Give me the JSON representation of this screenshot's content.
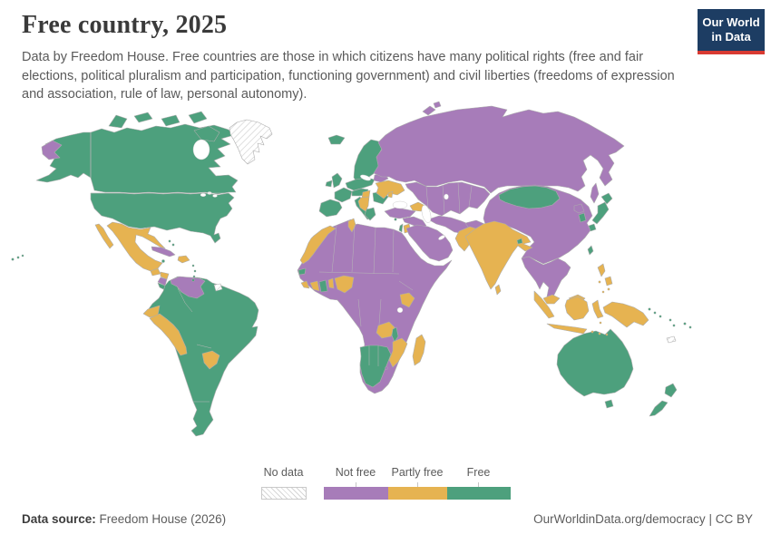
{
  "header": {
    "title": "Free country, 2025",
    "subtitle": "Data by Freedom House. Free countries are those in which citizens have many political rights (free and fair elections, political pluralism and participation, functioning government) and civil liberties (freedoms of expression and association, rule of law, personal autonomy)."
  },
  "logo": {
    "line1": "Our World",
    "line2": "in Data",
    "bg_color": "#1d3d63",
    "accent_color": "#d93a32"
  },
  "legend": {
    "no_data": {
      "id": "no_data",
      "label": "No data"
    },
    "categories": [
      {
        "id": "not_free",
        "label": "Not free",
        "color": "#A77CB9",
        "width": 71
      },
      {
        "id": "partly_free",
        "label": "Partly free",
        "color": "#E6B351",
        "width": 65
      },
      {
        "id": "free",
        "label": "Free",
        "color": "#4DA07D",
        "width": 70
      }
    ]
  },
  "map": {
    "palette": {
      "free": "#4DA07D",
      "partly_free": "#E6B351",
      "not_free": "#A77CB9",
      "no_data": "hatch"
    },
    "border_color": "#adadad",
    "ocean_color": "#ffffff",
    "regions": {
      "alaska": "free",
      "canada": "free",
      "arctic_islands": "free",
      "greenland": "no_data",
      "united_states": "free",
      "mexico": "partly_free",
      "guatemala": "partly_free",
      "honduras": "partly_free",
      "nicaragua": "not_free",
      "costa_rica_panama": "free",
      "cuba": "not_free",
      "jamaica": "free",
      "hispaniola": "partly_free",
      "bahamas": "free",
      "lesser_antilles": "free",
      "hawaii": "free",
      "south_america": "free",
      "venezuela": "not_free",
      "french_guiana": "no_data",
      "ecuador": "partly_free",
      "peru": "partly_free",
      "paraguay": "partly_free",
      "iceland": "free",
      "united_kingdom": "free",
      "ireland": "free",
      "scandinavia": "free",
      "denmark": "free",
      "central_europe": "free",
      "france": "free",
      "iberia": "free",
      "italy": "free",
      "alpine": "free",
      "romania_bulgaria": "free",
      "greece": "free",
      "hungary": "partly_free",
      "west_balkans": "partly_free",
      "ukraine": "partly_free",
      "moldova": "partly_free",
      "belarus": "not_free",
      "russia": "not_free",
      "sakhalin": "not_free",
      "novaya_zemlya": "not_free",
      "central_asia": "not_free",
      "caucasus": "partly_free",
      "turkey": "not_free",
      "levant": "not_free",
      "israel": "free",
      "jordan": "partly_free",
      "cyprus": "free",
      "arabia": "not_free",
      "iran": "not_free",
      "afghanistan": "not_free",
      "pakistan": "partly_free",
      "india": "partly_free",
      "bhutan": "free",
      "sri_lanka": "partly_free",
      "china": "not_free",
      "mongolia": "free",
      "north_korea": "not_free",
      "south_korea": "free",
      "japan": "free",
      "taiwan": "free",
      "indochina": "not_free",
      "malaysia": "partly_free",
      "indonesia": "partly_free",
      "philippines": "partly_free",
      "new_guinea": "partly_free",
      "timor_leste": "free",
      "australia": "free",
      "new_zealand": "free",
      "pacific_islands": "free",
      "new_caledonia": "no_data",
      "africa": "not_free",
      "morocco": "partly_free",
      "tunisia": "partly_free",
      "senegal": "free",
      "sierra_leone": "partly_free",
      "cote_divoire": "partly_free",
      "ghana": "free",
      "benin": "partly_free",
      "nigeria": "partly_free",
      "kenya": "partly_free",
      "zambia": "partly_free",
      "malawi": "free",
      "mozambique": "partly_free",
      "madagascar": "partly_free",
      "south_africa": "free",
      "eswatini": "not_free"
    }
  },
  "footer": {
    "source_label": "Data source:",
    "source_value": "Freedom House (2026)",
    "link": "OurWorldinData.org/democracy",
    "separator": "|",
    "license": "CC BY"
  },
  "chart_data": {
    "type": "choropleth",
    "title": "Free country, 2025",
    "year": 2025,
    "legend_position": "bottom-center",
    "legend_categories": [
      "No data",
      "Not free",
      "Partly free",
      "Free"
    ],
    "colors": {
      "Not free": "#A77CB9",
      "Partly free": "#E6B351",
      "Free": "#4DA07D",
      "No data": "white-gray diagonal hatch"
    },
    "countries": {
      "free": [
        "Canada",
        "United States",
        "Costa Rica",
        "Panama",
        "Jamaica",
        "Colombia",
        "Guyana",
        "Brazil",
        "Bolivia",
        "Argentina",
        "Chile",
        "Uruguay",
        "Iceland",
        "United Kingdom",
        "Ireland",
        "Norway",
        "Sweden",
        "Finland",
        "Denmark",
        "Germany",
        "France",
        "Spain",
        "Portugal",
        "Italy",
        "Greece",
        "Poland",
        "Czechia",
        "Austria",
        "Switzerland",
        "Netherlands",
        "Belgium",
        "Romania",
        "Bulgaria",
        "Estonia",
        "Latvia",
        "Lithuania",
        "Senegal",
        "Ghana",
        "South Africa",
        "Namibia",
        "Botswana",
        "Malawi",
        "Israel",
        "Cyprus",
        "Mongolia",
        "Bhutan",
        "Japan",
        "South Korea",
        "Taiwan",
        "Timor-Leste",
        "Australia",
        "New Zealand",
        "Fiji",
        "Solomon Islands",
        "Vanuatu"
      ],
      "partly_free": [
        "Mexico",
        "Guatemala",
        "Honduras",
        "Dominican Republic",
        "Ecuador",
        "Peru",
        "Paraguay",
        "Ukraine",
        "Moldova",
        "Hungary",
        "Serbia",
        "Bosnia and Herzegovina",
        "Albania",
        "North Macedonia",
        "Montenegro",
        "Georgia",
        "Armenia",
        "Morocco",
        "Tunisia",
        "Sierra Leone",
        "Liberia",
        "Cote d'Ivoire",
        "Benin",
        "Nigeria",
        "Kenya",
        "Zambia",
        "Mozambique",
        "Madagascar",
        "Jordan",
        "Pakistan",
        "India",
        "Nepal",
        "Bangladesh",
        "Sri Lanka",
        "Malaysia",
        "Indonesia",
        "Philippines",
        "Papua New Guinea"
      ],
      "not_free": [
        "Cuba",
        "Haiti",
        "Nicaragua",
        "Venezuela",
        "Russia",
        "Belarus",
        "Turkey",
        "Azerbaijan",
        "Kazakhstan",
        "Uzbekistan",
        "Turkmenistan",
        "Kyrgyzstan",
        "Tajikistan",
        "Afghanistan",
        "Iran",
        "Iraq",
        "Syria",
        "Saudi Arabia",
        "Yemen",
        "Oman",
        "United Arab Emirates",
        "Qatar",
        "Egypt",
        "Libya",
        "Algeria",
        "Mauritania",
        "Mali",
        "Niger",
        "Chad",
        "Sudan",
        "South Sudan",
        "Ethiopia",
        "Somalia",
        "Eritrea",
        "Cameroon",
        "Central African Republic",
        "Democratic Republic of Congo",
        "Republic of Congo",
        "Gabon",
        "Angola",
        "Zimbabwe",
        "Tanzania",
        "Uganda",
        "Rwanda",
        "Burundi",
        "Eswatini",
        "China",
        "North Korea",
        "Myanmar",
        "Thailand",
        "Laos",
        "Vietnam",
        "Cambodia"
      ],
      "no_data": [
        "Greenland",
        "French Guiana",
        "New Caledonia"
      ]
    }
  }
}
